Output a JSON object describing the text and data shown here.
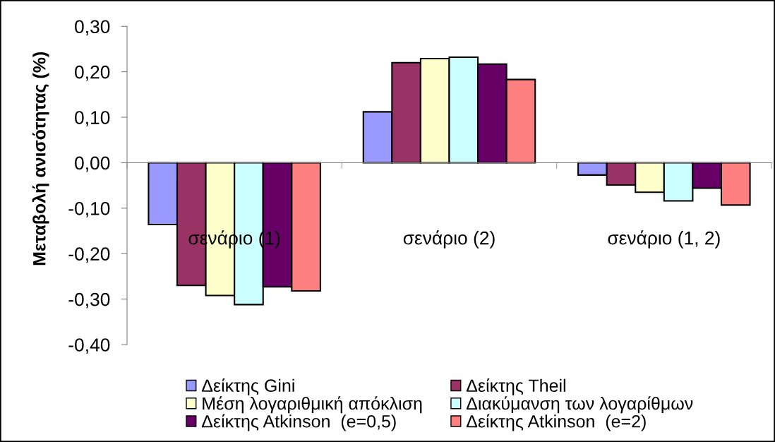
{
  "chart_data": {
    "type": "bar",
    "ylabel": "Μεταβολή ανισότητας (%)",
    "categories": [
      "σενάριο (1)",
      "σενάριο (2)",
      "σενάριο (1, 2)"
    ],
    "series": [
      {
        "name": "Δείκτης Gini",
        "color": "#9999ff",
        "values": [
          -0.136,
          0.112,
          -0.027
        ]
      },
      {
        "name": "Δείκτης Theil",
        "color": "#993366",
        "values": [
          -0.27,
          0.22,
          -0.049
        ]
      },
      {
        "name": "Μέση λογαριθμική απόκλιση",
        "color": "#ffffcc",
        "values": [
          -0.292,
          0.229,
          -0.065
        ]
      },
      {
        "name": "Διακύμανση των λογαρίθμων",
        "color": "#ccffff",
        "values": [
          -0.312,
          0.232,
          -0.084
        ]
      },
      {
        "name": "Δείκτης Atkinson  (e=0,5)",
        "color": "#660066",
        "values": [
          -0.273,
          0.217,
          -0.056
        ]
      },
      {
        "name": "Δείκτης Atkinson  (e=2)",
        "color": "#ff8080",
        "values": [
          -0.282,
          0.183,
          -0.093
        ]
      }
    ],
    "ylim": [
      -0.4,
      0.3
    ],
    "yticks": [
      {
        "value": -0.4,
        "label": "-0,40"
      },
      {
        "value": -0.3,
        "label": "-0,30"
      },
      {
        "value": -0.2,
        "label": "-0,20"
      },
      {
        "value": -0.1,
        "label": "-0,10"
      },
      {
        "value": 0,
        "label": "0,00"
      },
      {
        "value": 0.1,
        "label": "0,10"
      },
      {
        "value": 0.2,
        "label": "0,20"
      },
      {
        "value": 0.3,
        "label": "0,30"
      }
    ],
    "legend": "bottom"
  }
}
